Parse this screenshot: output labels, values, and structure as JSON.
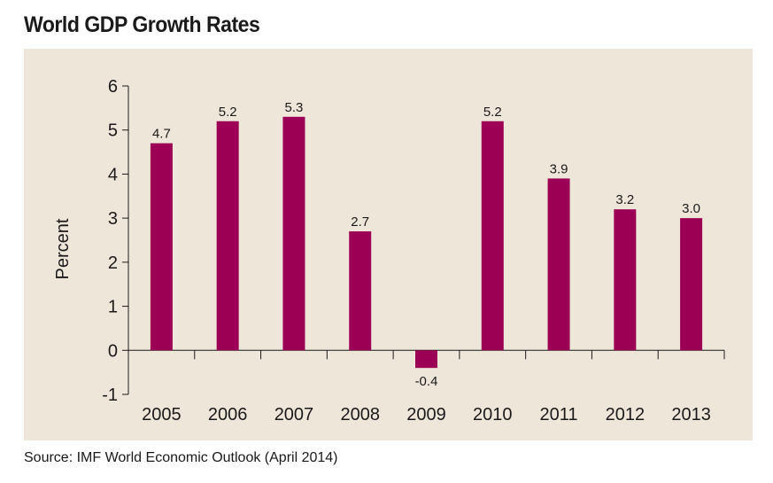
{
  "title": "World GDP Growth Rates",
  "source": "Source: IMF World Economic Outlook (April 2014)",
  "colors": {
    "bar": "#9b0054",
    "panel": "#eee7d9",
    "axis": "#1a1a1a"
  },
  "chart_data": {
    "type": "bar",
    "title": "World GDP Growth Rates",
    "xlabel": "",
    "ylabel": "Percent",
    "categories": [
      "2005",
      "2006",
      "2007",
      "2008",
      "2009",
      "2010",
      "2011",
      "2012",
      "2013"
    ],
    "values": [
      4.7,
      5.2,
      5.3,
      2.7,
      -0.4,
      5.2,
      3.9,
      3.2,
      3.0
    ],
    "value_labels": [
      "4.7",
      "5.2",
      "5.3",
      "2.7",
      "-0.4",
      "5.2",
      "3.9",
      "3.2",
      "3.0"
    ],
    "ylim": [
      -1,
      6
    ],
    "yticks": [
      -1,
      0,
      1,
      2,
      3,
      4,
      5,
      6
    ],
    "grid": false,
    "legend": "none"
  }
}
